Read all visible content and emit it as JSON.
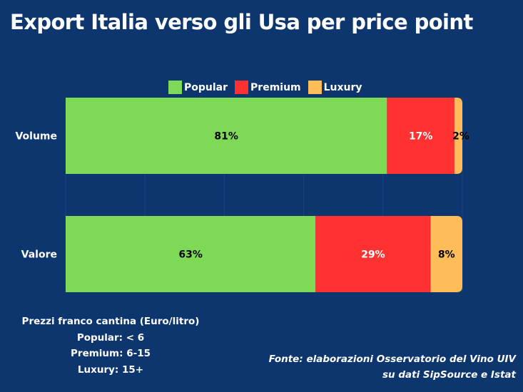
{
  "title": "Export Italia verso gli Usa per price point",
  "chart_data": {
    "type": "bar",
    "orientation": "horizontal",
    "stacked": true,
    "title": "Export Italia verso gli Usa per price point",
    "categories": [
      "Volume",
      "Valore"
    ],
    "series": [
      {
        "name": "Popular",
        "color": "#7ed957",
        "label_color": "#000000",
        "values": [
          81,
          63
        ]
      },
      {
        "name": "Premium",
        "color": "#ff3131",
        "label_color": "#ffffff",
        "values": [
          17,
          29
        ]
      },
      {
        "name": "Luxury",
        "color": "#ffbd59",
        "label_color": "#000000",
        "values": [
          2,
          8
        ]
      }
    ],
    "data_labels": [
      [
        "81%",
        "17%",
        "2%"
      ],
      [
        "63%",
        "29%",
        "8%"
      ]
    ],
    "xlim": [
      0,
      100
    ],
    "x_grid_step": 20,
    "grid": true,
    "legend_position": "top",
    "xlabel": "",
    "ylabel": ""
  },
  "notes": {
    "heading": "Prezzi franco cantina (Euro/litro)",
    "lines": [
      "Popular: < 6",
      "Premium: 6-15",
      "Luxury: 15+"
    ]
  },
  "source": {
    "line1": "Fonte: elaborazioni Osservatorio del Vino UIV",
    "line2": "su dati SipSource e Istat"
  },
  "colors": {
    "background": "#0e366e",
    "gridline": "#1a4480"
  }
}
